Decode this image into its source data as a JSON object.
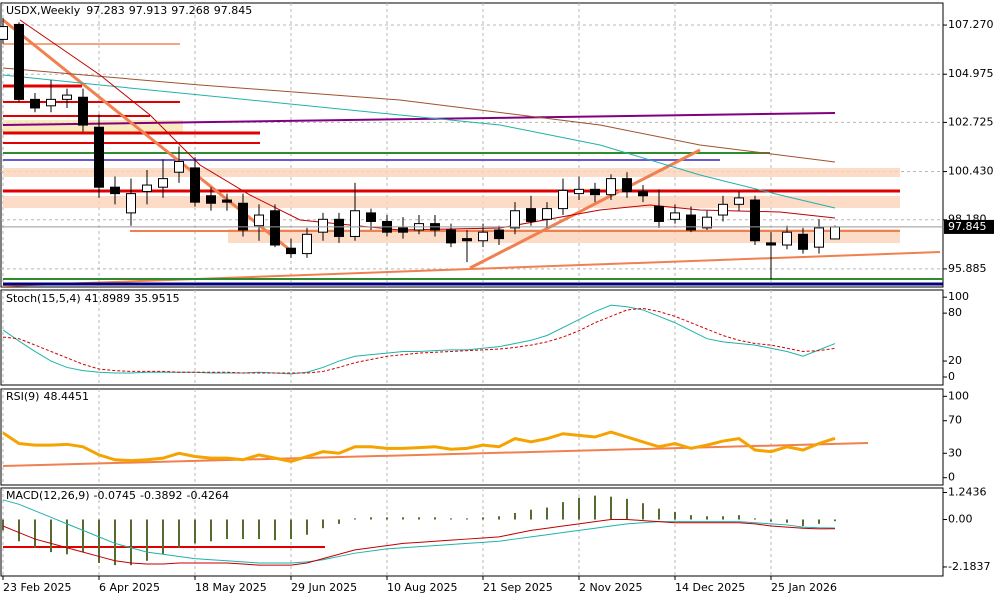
{
  "chart_data": [
    {
      "type": "candlestick",
      "title": "USDX,Weekly",
      "categories": [
        "23 Feb 2025",
        null,
        null,
        null,
        null,
        null,
        "6 Apr 2025",
        null,
        null,
        null,
        null,
        null,
        "18 May 2025",
        null,
        null,
        null,
        null,
        null,
        "29 Jun 2025",
        null,
        null,
        null,
        null,
        null,
        "10 Aug 2025",
        null,
        null,
        null,
        null,
        null,
        "21 Sep 2025",
        null,
        null,
        null,
        null,
        null,
        "2 Nov 2025",
        null,
        null,
        null,
        null,
        null,
        "14 Dec 2025",
        null,
        null,
        null,
        null,
        null,
        "25 Jan 2026",
        null,
        null,
        null,
        null
      ],
      "open": [
        106.6,
        107.3,
        103.8,
        103.5,
        103.8,
        103.9,
        102.5,
        99.7,
        98.5,
        99.5,
        99.7,
        100.4,
        100.6,
        99.3,
        99.1,
        98.95,
        97.9,
        98.6,
        96.85,
        96.6,
        97.6,
        98.2,
        97.4,
        98.5,
        98.1,
        97.8,
        97.7,
        98.0,
        97.7,
        97.3,
        97.2,
        97.7,
        97.8,
        98.7,
        98.2,
        98.7,
        99.4,
        99.6,
        99.35,
        100.1,
        99.5,
        98.8,
        98.2,
        98.4,
        97.8,
        98.4,
        98.9,
        99.1,
        97.1,
        97.0,
        97.5,
        96.9,
        97.283
      ],
      "high": [
        107.6,
        107.4,
        104.1,
        104.7,
        104.3,
        104.3,
        103.1,
        100.2,
        100.1,
        100.5,
        101.0,
        101.6,
        101.1,
        99.7,
        99.4,
        99.4,
        98.9,
        98.9,
        97.3,
        97.8,
        98.5,
        98.5,
        99.9,
        98.7,
        98.4,
        98.3,
        98.4,
        98.4,
        98.0,
        97.7,
        98.0,
        97.9,
        99.0,
        99.3,
        99.0,
        100.1,
        100.2,
        99.9,
        100.3,
        100.4,
        99.8,
        99.6,
        98.9,
        98.8,
        98.6,
        99.3,
        99.5,
        99.3,
        97.6,
        97.9,
        97.8,
        98.2,
        97.913
      ],
      "low": [
        106.4,
        103.7,
        103.2,
        103.2,
        103.4,
        102.3,
        99.2,
        98.9,
        97.9,
        98.9,
        99.2,
        99.9,
        98.8,
        98.6,
        98.6,
        97.4,
        97.2,
        96.9,
        96.4,
        96.4,
        97.2,
        97.1,
        97.2,
        97.7,
        97.4,
        97.3,
        97.5,
        97.4,
        96.9,
        96.2,
        96.9,
        97.0,
        97.5,
        97.9,
        97.8,
        98.4,
        99.1,
        99.0,
        99.1,
        99.2,
        99.0,
        97.8,
        98.0,
        97.6,
        97.7,
        98.1,
        98.6,
        97.0,
        95.4,
        96.8,
        96.6,
        96.6,
        97.268
      ],
      "close": [
        107.2,
        103.8,
        103.4,
        103.8,
        104.0,
        102.6,
        99.7,
        99.4,
        99.4,
        99.8,
        100.1,
        100.9,
        99.0,
        98.95,
        99.0,
        97.7,
        98.4,
        97.0,
        96.6,
        97.5,
        98.2,
        97.4,
        98.6,
        98.1,
        97.6,
        97.6,
        98.0,
        97.7,
        97.1,
        97.2,
        97.6,
        97.3,
        98.6,
        98.1,
        98.7,
        99.55,
        99.6,
        99.35,
        100.1,
        99.5,
        99.3,
        98.1,
        98.5,
        97.7,
        98.3,
        98.9,
        99.2,
        97.2,
        97.0,
        97.6,
        96.8,
        97.8,
        97.845
      ],
      "up_color": "#ffffff",
      "down_color": "#000000",
      "ylim": [
        95.04,
        108.3
      ],
      "yticks": [
        {
          "value": 107.27,
          "label": "107.270"
        },
        {
          "value": 104.975,
          "label": "104.975"
        },
        {
          "value": 102.725,
          "label": "102.725"
        },
        {
          "value": 100.43,
          "label": "100.430"
        },
        {
          "value": 98.18,
          "label": "98.180"
        },
        {
          "value": 95.885,
          "label": "95.885"
        }
      ],
      "grid": true
    },
    {
      "type": "line",
      "title": "Stoch(15,5,4)",
      "ylim": [
        -10,
        109
      ],
      "yticks": [
        100,
        80,
        20,
        0
      ],
      "series": [
        {
          "color": "#20b2aa",
          "dash": false,
          "values": [
            59,
            45,
            32,
            20,
            12,
            8,
            6,
            5,
            5,
            6,
            6,
            6,
            6,
            5,
            5,
            5,
            6,
            5,
            4,
            6,
            12,
            20,
            26,
            28,
            30,
            32,
            32,
            33,
            34,
            34,
            36,
            38,
            42,
            46,
            52,
            62,
            72,
            82,
            90,
            88,
            84,
            76,
            68,
            58,
            48,
            44,
            42,
            40,
            36,
            32,
            26,
            34,
            41.8989
          ]
        },
        {
          "color": "#d00000",
          "dash": true,
          "values": [
            50,
            48,
            40,
            32,
            24,
            16,
            10,
            8,
            7,
            7,
            7,
            6,
            6,
            6,
            6,
            5,
            5,
            5,
            5,
            5,
            7,
            12,
            18,
            22,
            26,
            28,
            30,
            31,
            32,
            33,
            34,
            35,
            37,
            40,
            44,
            50,
            58,
            68,
            76,
            84,
            86,
            82,
            76,
            68,
            60,
            52,
            46,
            42,
            40,
            36,
            32,
            33,
            35.9515
          ]
        }
      ]
    },
    {
      "type": "line",
      "title": "RSI(9)",
      "ylim": [
        -9,
        109
      ],
      "yticks": [
        100,
        70,
        30,
        0
      ],
      "series": [
        {
          "color": "#f5a300",
          "dash": false,
          "values": [
            55,
            42,
            40,
            40,
            41,
            38,
            28,
            22,
            21,
            22,
            24,
            30,
            26,
            24,
            24,
            22,
            28,
            24,
            20,
            26,
            32,
            30,
            38,
            38,
            36,
            36,
            37,
            38,
            35,
            36,
            40,
            38,
            48,
            44,
            48,
            54,
            52,
            50,
            56,
            50,
            44,
            38,
            42,
            36,
            40,
            45,
            48,
            34,
            32,
            38,
            34,
            42,
            48.4451
          ]
        }
      ]
    },
    {
      "type": "combo",
      "title": "MACD(12,26,9)",
      "ylim": [
        -2.6,
        1.45
      ],
      "yticks": [
        {
          "value": 1.2436,
          "label": "1.2436"
        },
        {
          "value": 0,
          "label": "0.00"
        },
        {
          "value": -2.1837,
          "label": "-2.1837"
        }
      ],
      "series": [
        {
          "type": "bar",
          "color": "#556b2f",
          "values": [
            -0.5,
            -1.0,
            -1.3,
            -1.5,
            -1.6,
            -1.5,
            -2.0,
            -2.1,
            -2.1,
            -1.9,
            -1.6,
            -1.3,
            -1.1,
            -1.0,
            -0.9,
            -0.9,
            -0.9,
            -0.95,
            -0.9,
            -0.7,
            -0.4,
            -0.2,
            0.05,
            0.1,
            0.1,
            0.1,
            0.1,
            0.1,
            0.05,
            0.05,
            0.1,
            0.15,
            0.3,
            0.45,
            0.55,
            0.8,
            1.0,
            1.1,
            1.05,
            0.95,
            0.75,
            0.5,
            0.35,
            0.2,
            0.15,
            0.15,
            0.2,
            0.05,
            -0.1,
            -0.15,
            -0.3,
            -0.2,
            -0.0745
          ]
        },
        {
          "type": "line",
          "color": "#20b2aa",
          "values": [
            0.9,
            0.7,
            0.4,
            0.1,
            -0.2,
            -0.5,
            -0.8,
            -1.1,
            -1.3,
            -1.5,
            -1.6,
            -1.7,
            -1.8,
            -1.85,
            -1.9,
            -1.95,
            -2.0,
            -2.0,
            -2.0,
            -1.95,
            -1.85,
            -1.7,
            -1.55,
            -1.45,
            -1.35,
            -1.3,
            -1.25,
            -1.2,
            -1.15,
            -1.1,
            -1.05,
            -1.0,
            -0.9,
            -0.8,
            -0.7,
            -0.6,
            -0.5,
            -0.4,
            -0.3,
            -0.2,
            -0.15,
            -0.1,
            -0.1,
            -0.1,
            -0.1,
            -0.1,
            -0.1,
            -0.15,
            -0.2,
            -0.25,
            -0.35,
            -0.38,
            -0.3892
          ]
        },
        {
          "type": "line",
          "color": "#c00000",
          "values": [
            -0.3,
            -0.6,
            -0.9,
            -1.1,
            -1.3,
            -1.5,
            -1.7,
            -1.9,
            -2.0,
            -2.05,
            -2.05,
            -2.0,
            -2.0,
            -2.0,
            -2.0,
            -2.05,
            -2.1,
            -2.1,
            -2.1,
            -2.0,
            -1.8,
            -1.6,
            -1.4,
            -1.3,
            -1.2,
            -1.1,
            -1.05,
            -1.0,
            -0.95,
            -0.9,
            -0.85,
            -0.8,
            -0.65,
            -0.5,
            -0.4,
            -0.3,
            -0.2,
            -0.1,
            0.0,
            0.0,
            -0.05,
            -0.1,
            -0.15,
            -0.15,
            -0.15,
            -0.15,
            -0.15,
            -0.2,
            -0.3,
            -0.35,
            -0.4,
            -0.43,
            -0.4264
          ]
        }
      ]
    }
  ]
}
